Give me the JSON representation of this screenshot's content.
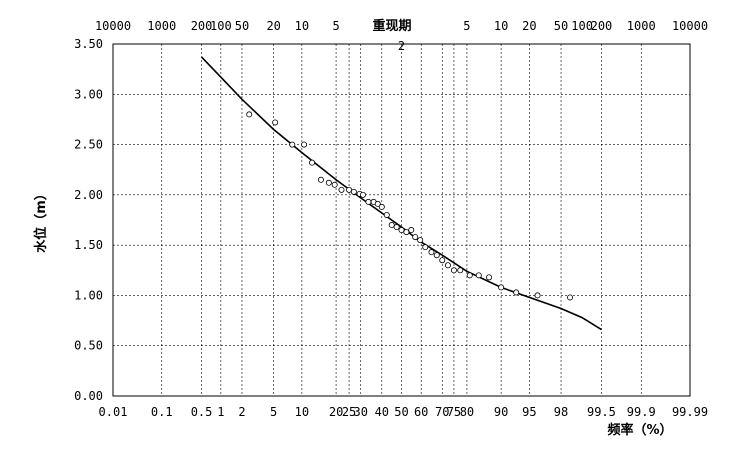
{
  "chart_data": {
    "type": "scatter",
    "title": "",
    "xlabel": "频率（%）",
    "ylabel": "水位（m）",
    "x2label": "重现期",
    "x_scale": "normal-probability",
    "ylim": [
      0,
      3.5
    ],
    "y_ticks": [
      "0.00",
      "0.50",
      "1.00",
      "1.50",
      "2.00",
      "2.50",
      "3.00",
      "3.50"
    ],
    "x_bottom_ticks": [
      {
        "label": "0.01",
        "p": 0.01
      },
      {
        "label": "0.1",
        "p": 0.1
      },
      {
        "label": "0.5",
        "p": 0.5
      },
      {
        "label": "1",
        "p": 1
      },
      {
        "label": "2",
        "p": 2
      },
      {
        "label": "5",
        "p": 5
      },
      {
        "label": "10",
        "p": 10
      },
      {
        "label": "20",
        "p": 20
      },
      {
        "label": "25",
        "p": 25
      },
      {
        "label": "30",
        "p": 30
      },
      {
        "label": "40",
        "p": 40
      },
      {
        "label": "50",
        "p": 50
      },
      {
        "label": "60",
        "p": 60
      },
      {
        "label": "70",
        "p": 70
      },
      {
        "label": "75",
        "p": 75
      },
      {
        "label": "80",
        "p": 80
      },
      {
        "label": "90",
        "p": 90
      },
      {
        "label": "95",
        "p": 95
      },
      {
        "label": "98",
        "p": 98
      },
      {
        "label": "99.5",
        "p": 99.5
      },
      {
        "label": "99.9",
        "p": 99.9
      },
      {
        "label": "99.99",
        "p": 99.99
      }
    ],
    "x_top_ticks": [
      {
        "label": "10000",
        "p": 0.01
      },
      {
        "label": "1000",
        "p": 0.1
      },
      {
        "label": "200",
        "p": 0.5
      },
      {
        "label": "100",
        "p": 1
      },
      {
        "label": "50",
        "p": 2
      },
      {
        "label": "20",
        "p": 5
      },
      {
        "label": "10",
        "p": 10
      },
      {
        "label": "5",
        "p": 20
      },
      {
        "label": "2",
        "p": 50
      },
      {
        "label": "5",
        "p": 80
      },
      {
        "label": "10",
        "p": 90
      },
      {
        "label": "20",
        "p": 95
      },
      {
        "label": "50",
        "p": 98
      },
      {
        "label": "100",
        "p": 99
      },
      {
        "label": "200",
        "p": 99.5
      },
      {
        "label": "1000",
        "p": 99.9
      },
      {
        "label": "10000",
        "p": 99.99
      }
    ],
    "grid": true,
    "series": [
      {
        "kind": "points",
        "x": [
          2.5,
          5.2,
          8,
          10.5,
          12.5,
          15,
          17.5,
          19.5,
          22,
          25,
          27,
          29.5,
          31,
          33.5,
          36,
          38,
          40,
          42.5,
          45,
          47.5,
          50,
          52.5,
          55,
          57,
          59.5,
          62,
          65,
          67.5,
          70,
          72.5,
          75,
          77.5,
          81,
          84,
          87,
          90,
          93,
          96,
          98.5
        ],
        "y": [
          2.8,
          2.72,
          2.5,
          2.5,
          2.32,
          2.15,
          2.12,
          2.1,
          2.05,
          2.05,
          2.03,
          2.01,
          2.0,
          1.93,
          1.93,
          1.91,
          1.88,
          1.8,
          1.7,
          1.68,
          1.65,
          1.63,
          1.65,
          1.58,
          1.55,
          1.48,
          1.43,
          1.4,
          1.35,
          1.3,
          1.25,
          1.25,
          1.2,
          1.2,
          1.18,
          1.08,
          1.03,
          1.0,
          0.98
        ]
      },
      {
        "kind": "fitted-curve",
        "x": [
          0.5,
          1,
          2,
          5,
          10,
          20,
          30,
          40,
          50,
          60,
          70,
          80,
          90,
          95,
          98,
          99,
          99.5
        ],
        "y": [
          3.37,
          3.17,
          2.95,
          2.65,
          2.42,
          2.15,
          1.97,
          1.82,
          1.68,
          1.53,
          1.4,
          1.24,
          1.08,
          0.98,
          0.87,
          0.78,
          0.66
        ]
      }
    ]
  }
}
